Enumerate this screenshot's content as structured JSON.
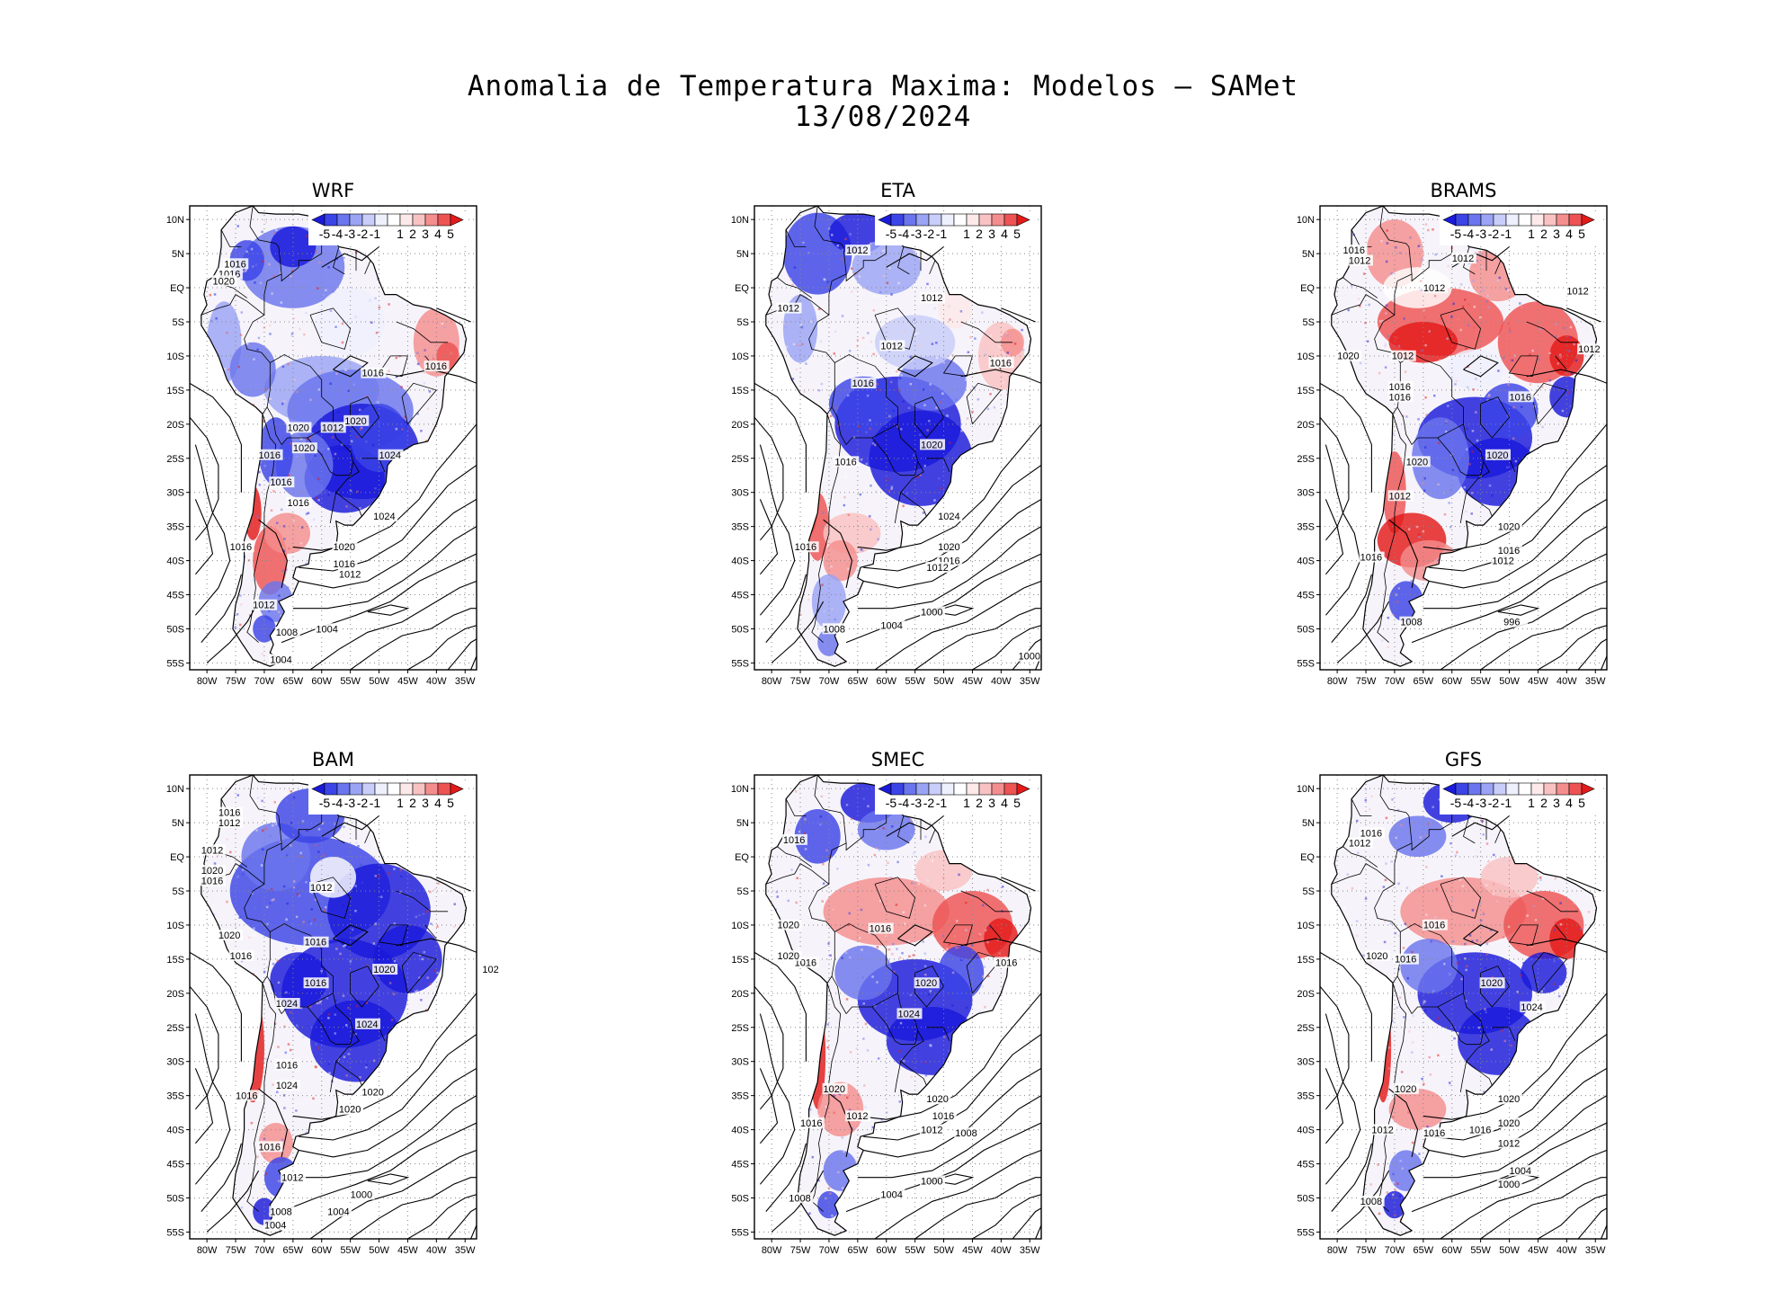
{
  "figure": {
    "title_line1": "Anomalia de Temperatura Maxima: Modelos — SAMet",
    "title_line2": "13/08/2024"
  },
  "chart_data": {
    "type": "heatmap",
    "variable": "Maximum temperature anomaly (°C) with mean sea-level pressure contours (hPa)",
    "lon_range": [
      -83,
      -33
    ],
    "lat_range": [
      -56,
      12
    ],
    "x_ticks": [
      "80W",
      "75W",
      "70W",
      "65W",
      "60W",
      "55W",
      "50W",
      "45W",
      "40W",
      "35W"
    ],
    "y_ticks": [
      "10N",
      "5N",
      "EQ",
      "5S",
      "10S",
      "15S",
      "20S",
      "25S",
      "30S",
      "35S",
      "40S",
      "45S",
      "50S",
      "55S"
    ],
    "colorbar": {
      "labels": [
        "-5",
        "-4",
        "-3",
        "-2",
        "-1",
        "1",
        "2",
        "3",
        "4",
        "5"
      ],
      "colors": [
        "#1a1adb",
        "#3b44e6",
        "#6a75ee",
        "#9aa3f4",
        "#c8cdf9",
        "#eef0fe",
        "#ffffff",
        "#fde9e9",
        "#f9c2c2",
        "#f48e8e",
        "#ee5353",
        "#e31a1a"
      ]
    },
    "panels": [
      {
        "name": "WRF",
        "contour_labels": [
          "1016",
          "1016",
          "1020",
          "1020",
          "1016",
          "1012",
          "1016",
          "1016",
          "1020",
          "1020",
          "1024",
          "1016",
          "1016",
          "1016",
          "1024",
          "1020",
          "1016",
          "1012",
          "1012",
          "1008",
          "1004",
          "1004"
        ]
      },
      {
        "name": "ETA",
        "contour_labels": [
          "1012",
          "1012",
          "1012",
          "1012",
          "1016",
          "1016",
          "1020",
          "1016",
          "1024",
          "1020",
          "1016",
          "1016",
          "1012",
          "1008",
          "1004",
          "1000",
          "1000"
        ]
      },
      {
        "name": "BRAMS",
        "contour_labels": [
          "1012",
          "1016",
          "1012",
          "1012",
          "1012",
          "1012",
          "1012",
          "1020",
          "1016",
          "1016",
          "1016",
          "1020",
          "1020",
          "1012",
          "1020",
          "1016",
          "1016",
          "1012",
          "1008",
          "996"
        ]
      },
      {
        "name": "BAM",
        "contour_labels": [
          "1016",
          "1012",
          "1012",
          "1020",
          "1016",
          "1012",
          "1020",
          "1016",
          "1016",
          "1020",
          "1016",
          "1024",
          "1024",
          "1020",
          "1016",
          "1024",
          "1016",
          "1020",
          "1016",
          "1016",
          "1012",
          "1008",
          "1004",
          "1004",
          "1000",
          "102"
        ]
      },
      {
        "name": "SMEC",
        "contour_labels": [
          "1016",
          "1020",
          "1016",
          "1016",
          "1020",
          "1016",
          "1020",
          "1024",
          "1020",
          "1020",
          "1012",
          "1016",
          "1016",
          "1012",
          "1008",
          "1008",
          "1004",
          "1000"
        ]
      },
      {
        "name": "GFS",
        "contour_labels": [
          "1016",
          "1012",
          "1016",
          "1020",
          "1016",
          "1020",
          "1020",
          "1024",
          "1020",
          "1020",
          "1016",
          "1012",
          "1016",
          "1012",
          "1008",
          "1004",
          "1000"
        ]
      }
    ]
  }
}
